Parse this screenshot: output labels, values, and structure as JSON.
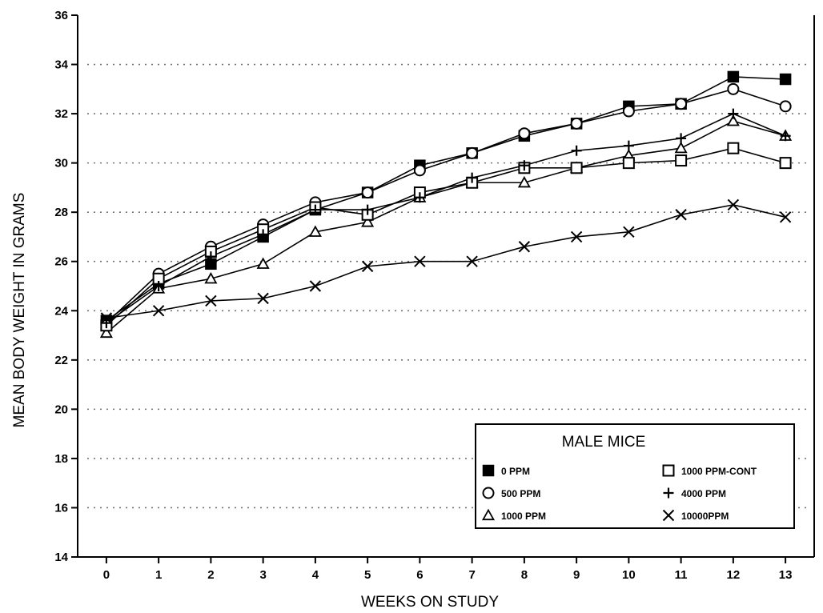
{
  "chart_data": {
    "type": "line",
    "title": "",
    "xlabel": "WEEKS ON STUDY",
    "ylabel": "MEAN BODY WEIGHT IN GRAMS",
    "xlim": [
      -0.55,
      13.55
    ],
    "ylim": [
      14,
      36
    ],
    "x_ticks": [
      0,
      1,
      2,
      3,
      4,
      5,
      6,
      7,
      8,
      9,
      10,
      11,
      12,
      13
    ],
    "y_ticks": [
      14,
      16,
      18,
      20,
      22,
      24,
      26,
      28,
      30,
      32,
      34,
      36
    ],
    "grid": "dotted, faint",
    "legend": {
      "title": "MALE MICE",
      "placement": "bottom-right"
    },
    "x": [
      0,
      1,
      2,
      3,
      4,
      5,
      6,
      7,
      8,
      9,
      10,
      11,
      12,
      13
    ],
    "series": [
      {
        "name": "0 PPM",
        "marker": "filled-square",
        "values": [
          23.6,
          25.1,
          25.9,
          27.0,
          28.1,
          28.8,
          29.9,
          30.4,
          31.1,
          31.6,
          32.3,
          32.4,
          33.5,
          33.4
        ]
      },
      {
        "name": "500 PPM",
        "marker": "circle",
        "values": [
          23.5,
          25.5,
          26.6,
          27.5,
          28.4,
          28.8,
          29.7,
          30.4,
          31.2,
          31.6,
          32.1,
          32.4,
          33.0,
          32.3
        ]
      },
      {
        "name": "1000 PPM",
        "marker": "triangle",
        "values": [
          23.1,
          24.9,
          25.3,
          25.9,
          27.2,
          27.6,
          28.6,
          29.2,
          29.2,
          29.8,
          30.3,
          30.6,
          31.7,
          31.1
        ]
      },
      {
        "name": "1000 PPM-CONT",
        "marker": "square",
        "values": [
          23.4,
          25.3,
          26.4,
          27.3,
          28.2,
          27.9,
          28.8,
          29.2,
          29.8,
          29.8,
          30.0,
          30.1,
          30.6,
          30.0
        ]
      },
      {
        "name": "4000 PPM",
        "marker": "plus",
        "values": [
          23.5,
          25.0,
          26.2,
          27.1,
          28.1,
          28.1,
          28.6,
          29.4,
          29.9,
          30.5,
          30.7,
          31.0,
          32.0,
          31.1
        ]
      },
      {
        "name": "10000PPM",
        "marker": "x",
        "values": [
          23.7,
          24.0,
          24.4,
          24.5,
          25.0,
          25.8,
          26.0,
          26.0,
          26.6,
          27.0,
          27.2,
          27.9,
          28.3,
          27.8
        ]
      }
    ]
  },
  "colors": {
    "ink": "#000000",
    "grid": "#000000",
    "background": "#ffffff"
  }
}
